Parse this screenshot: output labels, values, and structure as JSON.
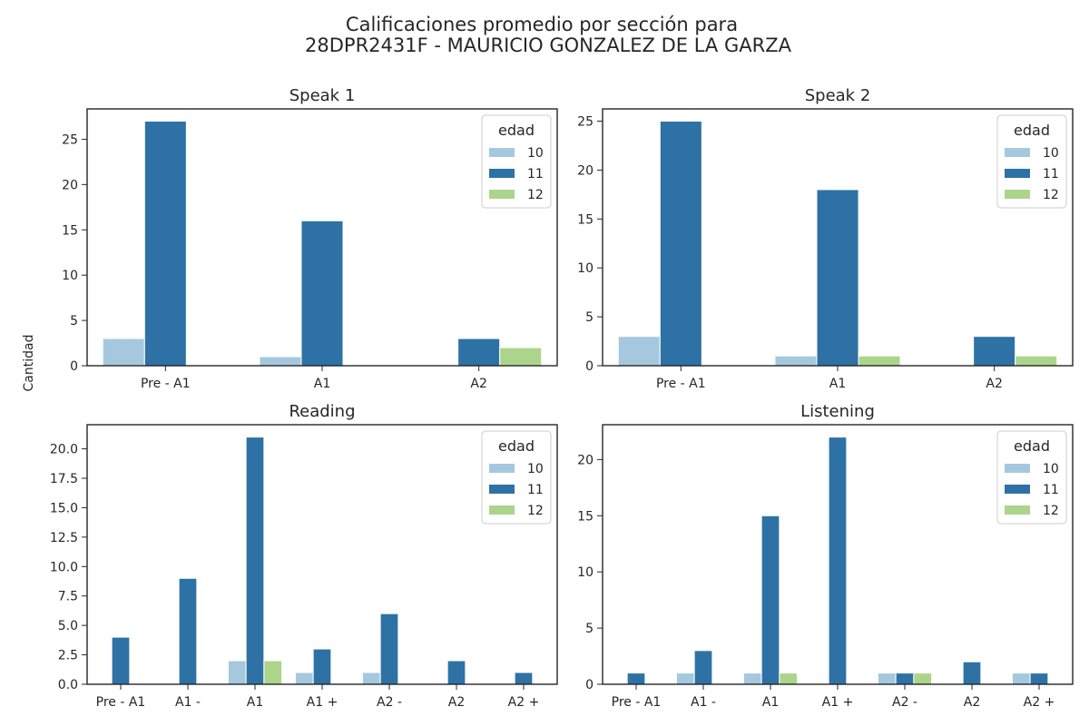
{
  "figure": {
    "title_line1": "Calificaciones promedio por sección para",
    "title_line2": "28DPR2431F - MAURICIO GONZALEZ DE LA GARZA",
    "ylabel": "Cantidad"
  },
  "colors": {
    "10": "#a6c8df",
    "11": "#2e72a5",
    "12": "#acd58b"
  },
  "chart_data": [
    {
      "type": "bar",
      "title": "Speak 1",
      "categories": [
        "Pre - A1",
        "A1",
        "A2"
      ],
      "ylim": [
        0,
        28.35
      ],
      "yticks": [
        0,
        5,
        10,
        15,
        20,
        25
      ],
      "ytick_labels": [
        "0",
        "5",
        "10",
        "15",
        "20",
        "25"
      ],
      "legend": {
        "title": "edad",
        "placement": "top-right"
      },
      "series": [
        {
          "name": "10",
          "values": [
            3,
            1,
            0
          ]
        },
        {
          "name": "11",
          "values": [
            27,
            16,
            3
          ]
        },
        {
          "name": "12",
          "values": [
            0,
            0,
            2
          ]
        }
      ]
    },
    {
      "type": "bar",
      "title": "Speak 2",
      "categories": [
        "Pre - A1",
        "A1",
        "A2"
      ],
      "ylim": [
        0,
        26.25
      ],
      "yticks": [
        0,
        5,
        10,
        15,
        20,
        25
      ],
      "ytick_labels": [
        "0",
        "5",
        "10",
        "15",
        "20",
        "25"
      ],
      "legend": {
        "title": "edad",
        "placement": "top-right"
      },
      "series": [
        {
          "name": "10",
          "values": [
            3,
            1,
            0
          ]
        },
        {
          "name": "11",
          "values": [
            25,
            18,
            3
          ]
        },
        {
          "name": "12",
          "values": [
            0,
            1,
            1
          ]
        }
      ]
    },
    {
      "type": "bar",
      "title": "Reading",
      "categories": [
        "Pre - A1",
        "A1 -",
        "A1",
        "A1 +",
        "A2 -",
        "A2",
        "A2 +"
      ],
      "ylim": [
        0,
        22.05
      ],
      "yticks": [
        0,
        2.5,
        5,
        7.5,
        10,
        12.5,
        15,
        17.5,
        20
      ],
      "ytick_labels": [
        "0.0",
        "2.5",
        "5.0",
        "7.5",
        "10.0",
        "12.5",
        "15.0",
        "17.5",
        "20.0"
      ],
      "legend": {
        "title": "edad",
        "placement": "top-right"
      },
      "series": [
        {
          "name": "10",
          "values": [
            0,
            0,
            2,
            1,
            1,
            0,
            0
          ]
        },
        {
          "name": "11",
          "values": [
            4,
            9,
            21,
            3,
            6,
            2,
            1
          ]
        },
        {
          "name": "12",
          "values": [
            0,
            0,
            2,
            0,
            0,
            0,
            0
          ]
        }
      ]
    },
    {
      "type": "bar",
      "title": "Listening",
      "categories": [
        "Pre - A1",
        "A1 -",
        "A1",
        "A1 +",
        "A2 -",
        "A2",
        "A2 +"
      ],
      "ylim": [
        0,
        23.1
      ],
      "yticks": [
        0,
        5,
        10,
        15,
        20
      ],
      "ytick_labels": [
        "0",
        "5",
        "10",
        "15",
        "20"
      ],
      "legend": {
        "title": "edad",
        "placement": "top-right"
      },
      "series": [
        {
          "name": "10",
          "values": [
            0,
            1,
            1,
            0,
            1,
            0,
            1
          ]
        },
        {
          "name": "11",
          "values": [
            1,
            3,
            15,
            22,
            1,
            2,
            1
          ]
        },
        {
          "name": "12",
          "values": [
            0,
            0,
            1,
            0,
            1,
            0,
            0
          ]
        }
      ]
    }
  ]
}
